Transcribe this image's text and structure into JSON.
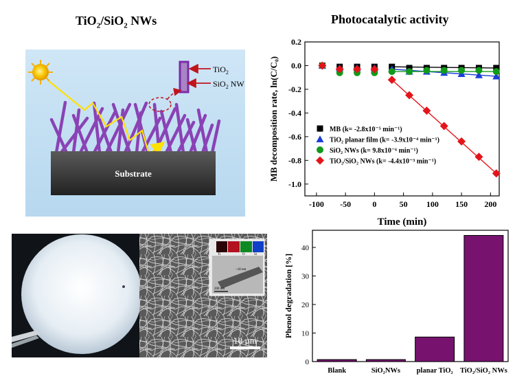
{
  "diagram": {
    "title_main": "TiO",
    "title_sub1": "2",
    "title_mid": "/SiO",
    "title_sub2": "2",
    "title_end": " NWs",
    "label_tio2": "TiO",
    "label_tio2_sub": "2",
    "label_sio2": "SiO",
    "label_sio2_sub": "2",
    "label_sio2_end": " NW",
    "substrate_label": "Substrate"
  },
  "photo": {
    "scale_bar_label": "10 µm",
    "inset_scale_label": "200 nm",
    "inset_thickness_label": "~18 nm",
    "inset_map_labels": [
      "Ti",
      "O",
      "Si"
    ]
  },
  "colors": {
    "sky_top": "#cfe6f6",
    "sky_bottom": "#b6d8ef",
    "nanowire": "#8a42b5",
    "arrow_red": "#c0141b",
    "sun": "#f5b100",
    "path_yellow": "#ffe100",
    "bar_purple": "#77136f",
    "MB": "#000000",
    "planar": "#1a3fd6",
    "sio2": "#129a1a",
    "tio2sio2": "#e3151a"
  },
  "chart_data": [
    {
      "type": "scatter",
      "title": "Photocatalytic activity",
      "xlabel": "Time (min)",
      "ylabel": "MB decomposition rate, ln(C/C₀)",
      "xlim": [
        -120,
        215
      ],
      "ylim": [
        -1.1,
        0.2
      ],
      "xticks": [
        -100,
        -50,
        0,
        50,
        100,
        150,
        200
      ],
      "yticks": [
        0.2,
        0.0,
        -0.2,
        -0.4,
        -0.6,
        -0.8,
        -1.0
      ],
      "grid": false,
      "legend_position": "bottom-left",
      "series": [
        {
          "name": "MB (k= -2.8x10⁻⁵ min⁻¹)",
          "marker": "square",
          "color": "#000000",
          "x": [
            -90,
            -60,
            -30,
            0,
            30,
            60,
            90,
            120,
            150,
            180,
            210
          ],
          "y": [
            0.0,
            -0.01,
            -0.01,
            -0.01,
            -0.01,
            -0.02,
            -0.02,
            -0.02,
            -0.02,
            -0.02,
            -0.02
          ]
        },
        {
          "name": "TiO₂ planar film (k= -3.9x10⁻⁴ min⁻¹)",
          "marker": "triangle",
          "color": "#1a3fd6",
          "x": [
            -90,
            -60,
            -30,
            0,
            30,
            60,
            90,
            120,
            150,
            180,
            210
          ],
          "y": [
            0.0,
            -0.02,
            -0.02,
            -0.02,
            -0.03,
            -0.05,
            -0.05,
            -0.06,
            -0.07,
            -0.08,
            -0.09
          ]
        },
        {
          "name": "SiO₂ NWs (k= 9.8x10⁻⁶ min⁻¹)",
          "marker": "circle",
          "color": "#129a1a",
          "x": [
            -90,
            -60,
            -30,
            0,
            30,
            60,
            90,
            120,
            150,
            180,
            210
          ],
          "y": [
            0.0,
            -0.06,
            -0.06,
            -0.06,
            -0.05,
            -0.05,
            -0.04,
            -0.04,
            -0.04,
            -0.04,
            -0.05
          ]
        },
        {
          "name": "TiO₂/SiO₂ NWs (k= -4.4x10⁻³ min⁻¹)",
          "marker": "diamond",
          "color": "#e3151a",
          "x": [
            -90,
            -60,
            -30,
            0,
            30,
            60,
            90,
            120,
            150,
            180,
            210
          ],
          "y": [
            0.0,
            -0.03,
            -0.03,
            -0.03,
            -0.12,
            -0.25,
            -0.38,
            -0.51,
            -0.64,
            -0.77,
            -0.91
          ]
        }
      ]
    },
    {
      "type": "bar",
      "categories": [
        "Blank",
        "SiO₂NWs",
        "planar TiO₂",
        "TiO₂/SiO₂ NWs"
      ],
      "values": [
        0.7,
        0.7,
        8.6,
        44.2
      ],
      "ylabel": "Phenol degradation  [%]",
      "xlabel": "",
      "ylim": [
        0,
        46
      ],
      "yticks": [
        0,
        10,
        20,
        30,
        40
      ],
      "color": "#77136f"
    }
  ]
}
